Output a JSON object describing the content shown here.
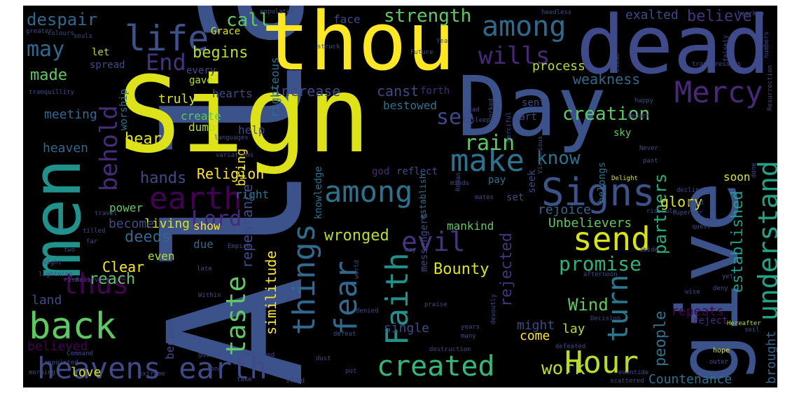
{
  "words": [
    {
      "text": "Allah",
      "color": "#3b528b"
    },
    {
      "text": "Sign",
      "color": "#dde318"
    },
    {
      "text": "thou",
      "color": "#fde725"
    },
    {
      "text": "Day",
      "color": "#3b528b"
    },
    {
      "text": "dead",
      "color": "#3e4a89"
    },
    {
      "text": "give",
      "color": "#3b528b"
    },
    {
      "text": "men",
      "color": "#21918c"
    },
    {
      "text": "life",
      "color": "#3b528b"
    },
    {
      "text": "heavens earth",
      "color": "#3e4a89"
    },
    {
      "text": "created",
      "color": "#35b779"
    },
    {
      "text": "Hour",
      "color": "#b5de2b"
    },
    {
      "text": "back",
      "color": "#5ec962"
    },
    {
      "text": "among",
      "color": "#31688e"
    },
    {
      "text": "among",
      "color": "#2c728e"
    },
    {
      "text": "Signs",
      "color": "#3b528b"
    },
    {
      "text": "earth",
      "color": "#440154"
    },
    {
      "text": "Mercy",
      "color": "#482878"
    },
    {
      "text": "send",
      "color": "#d8e219"
    },
    {
      "text": "make",
      "color": "#2c728e"
    },
    {
      "text": "things",
      "color": "#31688e"
    },
    {
      "text": "Faith",
      "color": "#21918c"
    },
    {
      "text": "fear",
      "color": "#31688e"
    },
    {
      "text": "understand",
      "color": "#20a386"
    },
    {
      "text": "turn",
      "color": "#2a788e"
    },
    {
      "text": "evil",
      "color": "#46337e"
    },
    {
      "text": "taste",
      "color": "#5ec962"
    },
    {
      "text": "wills",
      "color": "#482878"
    },
    {
      "text": "End",
      "color": "#46337e"
    },
    {
      "text": "may",
      "color": "#31688e"
    },
    {
      "text": "strength",
      "color": "#5ec962"
    },
    {
      "text": "despair",
      "color": "#31688e"
    },
    {
      "text": "behold",
      "color": "#472c7a"
    },
    {
      "text": "thus",
      "color": "#440154"
    },
    {
      "text": "promise",
      "color": "#2db27d"
    },
    {
      "text": "creation",
      "color": "#5ec962"
    },
    {
      "text": "know",
      "color": "#2c728e"
    },
    {
      "text": "Lord",
      "color": "#482878"
    },
    {
      "text": "see",
      "color": "#3e4a89"
    },
    {
      "text": "established",
      "color": "#1f9e89"
    },
    {
      "text": "rain",
      "color": "#5ec962"
    },
    {
      "text": "people",
      "color": "#2c728e"
    },
    {
      "text": "partners",
      "color": "#28ae80"
    },
    {
      "text": "believe",
      "color": "#46337e"
    },
    {
      "text": "exalted",
      "color": "#3e4a89"
    },
    {
      "text": "call",
      "color": "#5ec962"
    },
    {
      "text": "begins",
      "color": "#b5de2b"
    },
    {
      "text": "made",
      "color": "#5ec962"
    },
    {
      "text": "increase",
      "color": "#3e4a89"
    },
    {
      "text": "canst",
      "color": "#3e4a89"
    },
    {
      "text": "weakness",
      "color": "#31688e"
    },
    {
      "text": "process",
      "color": "#b5de2b"
    },
    {
      "text": "Religion",
      "color": "#fde725"
    },
    {
      "text": "hands",
      "color": "#3e4a89"
    },
    {
      "text": "hear",
      "color": "#dde318"
    },
    {
      "text": "rejected",
      "color": "#46337e"
    },
    {
      "text": "repentance",
      "color": "#3e4a89"
    },
    {
      "text": "Wind",
      "color": "#5ec962"
    },
    {
      "text": "deeds",
      "color": "#31688e"
    },
    {
      "text": "reach",
      "color": "#5ec962"
    },
    {
      "text": "Bounty",
      "color": "#dde318"
    },
    {
      "text": "wronged",
      "color": "#b5de2b"
    },
    {
      "text": "similitude",
      "color": "#fde725"
    },
    {
      "text": "living",
      "color": "#d8e219"
    },
    {
      "text": "glory",
      "color": "#dde318"
    },
    {
      "text": "rejoice",
      "color": "#31688e"
    },
    {
      "text": "Unbelievers",
      "color": "#5ec962"
    },
    {
      "text": "repeats",
      "color": "#440154"
    },
    {
      "text": "lay",
      "color": "#b5de2b"
    },
    {
      "text": "work",
      "color": "#b5de2b"
    },
    {
      "text": "Countenance",
      "color": "#2c728e"
    },
    {
      "text": "brought",
      "color": "#31688e"
    },
    {
      "text": "might",
      "color": "#3e4a89"
    },
    {
      "text": "come",
      "color": "#fde725"
    },
    {
      "text": "single",
      "color": "#3e4a89"
    },
    {
      "text": "believed",
      "color": "#440154"
    },
    {
      "text": "love",
      "color": "#dde318"
    },
    {
      "text": "land",
      "color": "#3e4a89"
    },
    {
      "text": "became",
      "color": "#3e4a89"
    },
    {
      "text": "Clear",
      "color": "#fde725"
    },
    {
      "text": "become",
      "color": "#3e4a89"
    },
    {
      "text": "power",
      "color": "#5ec962"
    },
    {
      "text": "even",
      "color": "#b5de2b"
    },
    {
      "text": "due",
      "color": "#31688e"
    },
    {
      "text": "show",
      "color": "#fde725"
    },
    {
      "text": "right",
      "color": "#2c728e"
    },
    {
      "text": "soon",
      "color": "#dde318"
    },
    {
      "text": "meeting",
      "color": "#31688e"
    },
    {
      "text": "heaven",
      "color": "#31688e"
    },
    {
      "text": "truly",
      "color": "#d8e219"
    },
    {
      "text": "hearts",
      "color": "#3e4a89"
    },
    {
      "text": "every",
      "color": "#3e4a89"
    },
    {
      "text": "create",
      "color": "#5ec962"
    },
    {
      "text": "dumb",
      "color": "#b5de2b"
    },
    {
      "text": "worship",
      "color": "#2c728e"
    },
    {
      "text": "help",
      "color": "#3e4a89"
    },
    {
      "text": "bring",
      "color": "#fde725"
    },
    {
      "text": "bestowed",
      "color": "#2c728e"
    },
    {
      "text": "face",
      "color": "#3e4a89"
    },
    {
      "text": "Grace",
      "color": "#dde318"
    },
    {
      "text": "let",
      "color": "#b5de2b"
    },
    {
      "text": "spread",
      "color": "#3e4a89"
    },
    {
      "text": "gave",
      "color": "#b5de2b"
    },
    {
      "text": "righteous",
      "color": "#2c728e"
    },
    {
      "text": "forth",
      "color": "#482878"
    },
    {
      "text": "sent",
      "color": "#3e4a89"
    },
    {
      "text": "part",
      "color": "#3e4a89"
    },
    {
      "text": "sky",
      "color": "#5ec962"
    },
    {
      "text": "belongs",
      "color": "#2c728e"
    },
    {
      "text": "knowledge",
      "color": "#2c728e"
    },
    {
      "text": "god",
      "color": "#482878"
    },
    {
      "text": "reflect",
      "color": "#3e4a89"
    },
    {
      "text": "pay",
      "color": "#2c728e"
    },
    {
      "text": "seek",
      "color": "#3e4a89"
    },
    {
      "text": "set",
      "color": "#3e4a89"
    },
    {
      "text": "mankind",
      "color": "#5ec962"
    },
    {
      "text": "messengers",
      "color": "#3e4a89"
    },
    {
      "text": "establish",
      "color": "#2c728e"
    },
    {
      "text": "reject",
      "color": "#482878"
    },
    {
      "text": "hope",
      "color": "#dde318"
    },
    {
      "text": "Hereafter",
      "color": "#b5de2b"
    },
    {
      "text": "soil",
      "color": "#3e4a89"
    },
    {
      "text": "wise",
      "color": "#3e4a89"
    },
    {
      "text": "deny",
      "color": "#3e4a89"
    },
    {
      "text": "yet",
      "color": "#3e4a89"
    },
    {
      "text": "Delight",
      "color": "#dde318"
    },
    {
      "text": "decline",
      "color": "#3e4a89"
    },
    {
      "text": "ridicule",
      "color": "#3e4a89"
    },
    {
      "text": "superior",
      "color": "#3e4a89"
    },
    {
      "text": "term",
      "color": "#3e4a89"
    },
    {
      "text": "quest",
      "color": "#3e4a89"
    },
    {
      "text": "Mead",
      "color": "#3e4a89"
    },
    {
      "text": "past",
      "color": "#3e4a89"
    },
    {
      "text": "Never",
      "color": "#3e4a89"
    },
    {
      "text": "done",
      "color": "#3e4a89"
    },
    {
      "text": "Decision",
      "color": "#3e4a89"
    },
    {
      "text": "afternoon",
      "color": "#3e4a89"
    },
    {
      "text": "transgressors",
      "color": "#3e4a89"
    },
    {
      "text": "Resurrection",
      "color": "#3e4a89"
    },
    {
      "text": "falsely",
      "color": "#3e4a89"
    },
    {
      "text": "close",
      "color": "#3e4a89"
    },
    {
      "text": "hearken",
      "color": "#3e4a89"
    },
    {
      "text": "heedless",
      "color": "#3e4a89"
    },
    {
      "text": "Yea",
      "color": "#3e4a89"
    },
    {
      "text": "Future",
      "color": "#3e4a89"
    },
    {
      "text": "struck",
      "color": "#3e4a89"
    },
    {
      "text": "souls",
      "color": "#3e4a89"
    },
    {
      "text": "colours",
      "color": "#3e4a89"
    },
    {
      "text": "greater",
      "color": "#3e4a89"
    },
    {
      "text": "populated",
      "color": "#3e4a89"
    },
    {
      "text": "happy",
      "color": "#3e4a89"
    },
    {
      "text": "depart",
      "color": "#3e4a89"
    },
    {
      "text": "worked",
      "color": "#3e4a89"
    },
    {
      "text": "Merciful",
      "color": "#3e4a89"
    },
    {
      "text": "head",
      "color": "#3e4a89"
    },
    {
      "text": "sleep",
      "color": "#3e4a89"
    },
    {
      "text": "Victorious",
      "color": "#3e4a89"
    },
    {
      "text": "numbers",
      "color": "#3e4a89"
    },
    {
      "text": "languages",
      "color": "#3e4a89"
    },
    {
      "text": "variations",
      "color": "#3e4a89"
    },
    {
      "text": "tranquillity",
      "color": "#3e4a89"
    },
    {
      "text": "minds",
      "color": "#3e4a89"
    },
    {
      "text": "Roman",
      "color": "#3e4a89"
    },
    {
      "text": "mates",
      "color": "#3e4a89"
    },
    {
      "text": "Empire",
      "color": "#3e4a89"
    },
    {
      "text": "tilled",
      "color": "#3e4a89"
    },
    {
      "text": "travel",
      "color": "#3e4a89"
    },
    {
      "text": "far",
      "color": "#3e4a89"
    },
    {
      "text": "two",
      "color": "#3e4a89"
    },
    {
      "text": "late",
      "color": "#3e4a89"
    },
    {
      "text": "world",
      "color": "#3e4a89"
    },
    {
      "text": "night",
      "color": "#3e4a89"
    },
    {
      "text": "lightning",
      "color": "#3e4a89"
    },
    {
      "text": "rise",
      "color": "#3e4a89"
    },
    {
      "text": "Believers",
      "color": "#3e4a89"
    },
    {
      "text": "Within",
      "color": "#3e4a89"
    },
    {
      "text": "denied",
      "color": "#3e4a89"
    },
    {
      "text": "praise",
      "color": "#3e4a89"
    },
    {
      "text": "devoutly",
      "color": "#3e4a89"
    },
    {
      "text": "outer",
      "color": "#3e4a89"
    },
    {
      "text": "years",
      "color": "#3e4a89"
    },
    {
      "text": "many",
      "color": "#3e4a89"
    },
    {
      "text": "defeat",
      "color": "#3e4a89"
    },
    {
      "text": "defeated",
      "color": "#3e4a89"
    },
    {
      "text": "guilty",
      "color": "#3e4a89"
    },
    {
      "text": "appointed",
      "color": "#3e4a89"
    },
    {
      "text": "morning",
      "color": "#3e4a89"
    },
    {
      "text": "Command",
      "color": "#3e4a89"
    },
    {
      "text": "long",
      "color": "#3e4a89"
    },
    {
      "text": "dust",
      "color": "#3e4a89"
    },
    {
      "text": "livelihood",
      "color": "#3e4a89"
    },
    {
      "text": "destruction",
      "color": "#3e4a89"
    },
    {
      "text": "take",
      "color": "#3e4a89"
    },
    {
      "text": "put",
      "color": "#3e4a89"
    },
    {
      "text": "stand",
      "color": "#3e4a89"
    },
    {
      "text": "eventide",
      "color": "#3e4a89"
    },
    {
      "text": "scattered",
      "color": "#3e4a89"
    },
    {
      "text": "extreme",
      "color": "#3e4a89"
    },
    {
      "text": "abide",
      "color": "#3e4a89"
    },
    {
      "text": "may",
      "color": "#3e4a89"
    }
  ]
}
